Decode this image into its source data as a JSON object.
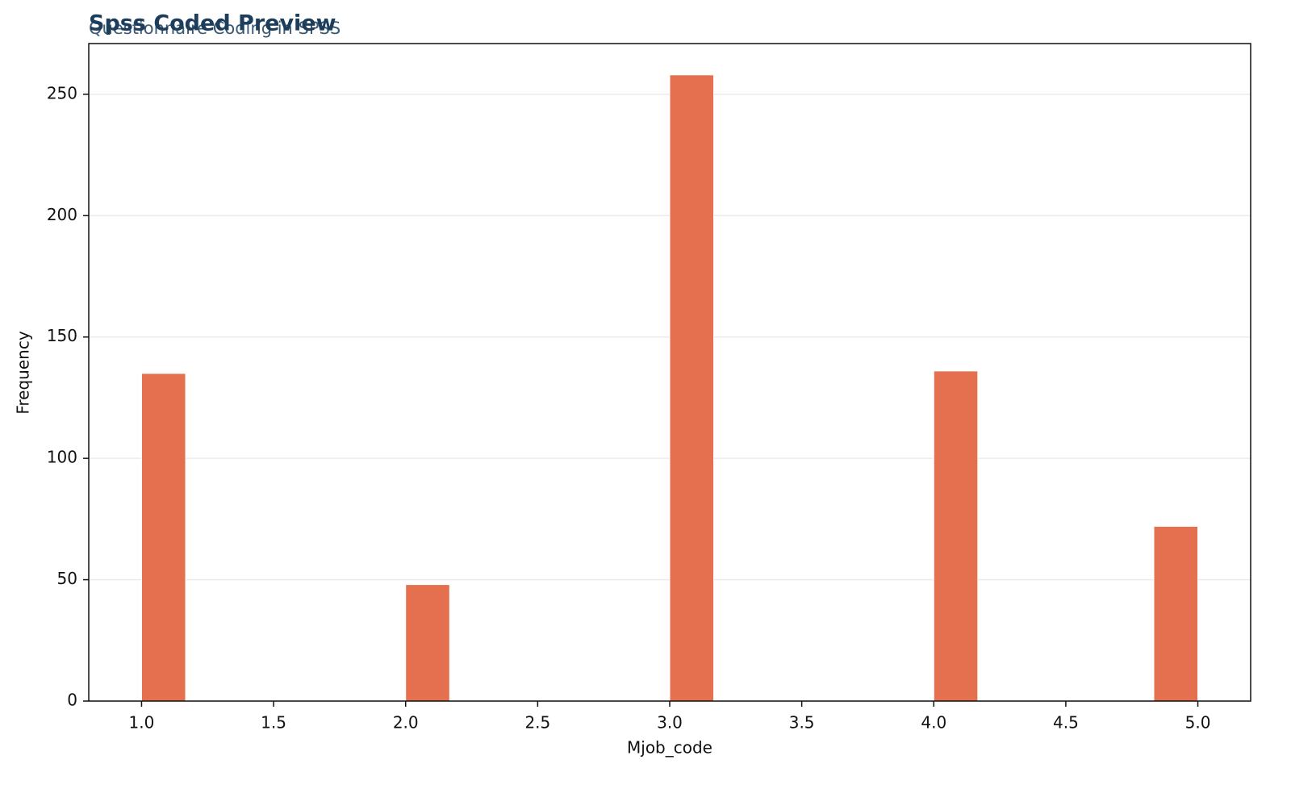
{
  "chart_data": {
    "type": "histogram",
    "title": "Spss Coded Preview",
    "subtitle": "Questionnaire Coding in SPSS",
    "x_label": "Mjob_code",
    "y_label": "Frequency",
    "bins": [
      1.0,
      1.1667,
      1.3333,
      1.5,
      1.6667,
      1.8333,
      2.0,
      2.1667,
      2.3333,
      2.5,
      2.6667,
      2.8333,
      3.0,
      3.1667,
      3.3333,
      3.5,
      3.6667,
      3.8333,
      4.0,
      4.1667,
      4.3333,
      4.5,
      4.6667,
      4.8333,
      5.0
    ],
    "values": [
      135,
      0,
      0,
      0,
      0,
      0,
      48,
      0,
      0,
      0,
      0,
      0,
      258,
      0,
      0,
      0,
      0,
      0,
      136,
      0,
      0,
      0,
      0,
      72
    ],
    "color": "#e5704f",
    "xlim": [
      0.8,
      5.2
    ],
    "xticks": [
      {
        "value": 1,
        "label": "1.0"
      },
      {
        "value": 1.5,
        "label": "1.5"
      },
      {
        "value": 2,
        "label": "2.0"
      },
      {
        "value": 2.5,
        "label": "2.5"
      },
      {
        "value": 3,
        "label": "3.0"
      },
      {
        "value": 3.5,
        "label": "3.5"
      },
      {
        "value": 4,
        "label": "4.0"
      },
      {
        "value": 4.5,
        "label": "4.5"
      },
      {
        "value": 5,
        "label": "5.0"
      }
    ],
    "ylim": [
      0,
      270.9
    ],
    "yticks": [
      0,
      50,
      100,
      150,
      200,
      250
    ],
    "grid": true
  }
}
